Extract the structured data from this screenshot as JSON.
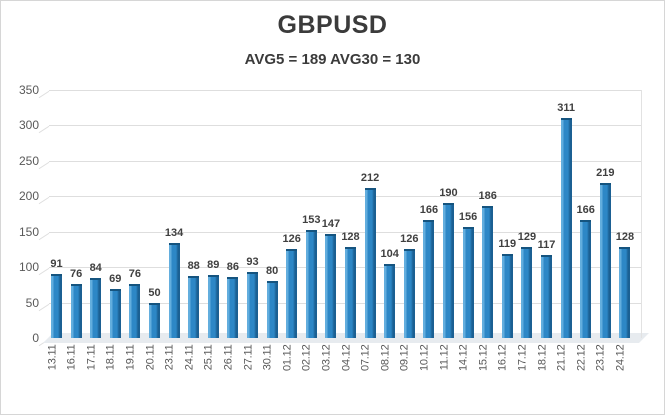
{
  "chart_data": {
    "type": "bar",
    "title": "GBPUSD",
    "subtitle": "AVG5 = 189 AVG30 = 130",
    "avg5": 189,
    "avg30": 130,
    "categories": [
      "13.11",
      "16.11",
      "17.11",
      "18.11",
      "19.11",
      "20.11",
      "23.11",
      "24.11",
      "25.11",
      "26.11",
      "27.11",
      "30.11",
      "01.12",
      "02.12",
      "03.12",
      "04.12",
      "07.12",
      "08.12",
      "09.12",
      "10.12",
      "11.12",
      "14.12",
      "15.12",
      "16.12",
      "17.12",
      "18.12",
      "21.12",
      "22.12",
      "23.12",
      "24.12"
    ],
    "values": [
      91,
      76,
      84,
      69,
      76,
      50,
      134,
      88,
      89,
      86,
      93,
      80,
      126,
      153,
      147,
      128,
      212,
      104,
      126,
      166,
      190,
      156,
      186,
      119,
      129,
      117,
      311,
      166,
      219,
      128
    ],
    "xlabel": "",
    "ylabel": "",
    "ylim": [
      0,
      350
    ],
    "yticks": [
      0,
      50,
      100,
      150,
      200,
      250,
      300,
      350
    ],
    "grid": "horizontal",
    "legend": "none",
    "style": "3d-effect",
    "colors": {
      "bar_face": "#2d87c6",
      "bar_light": "#63aede",
      "bar_dark": "#1b6093",
      "bar_top": "#15547f",
      "grid": "#dedede",
      "value_label": "#404040",
      "axis_label": "#595959",
      "title": "#3b3b3b",
      "floor": "#e7ebef",
      "frame_border": "#d6d6d6"
    }
  }
}
